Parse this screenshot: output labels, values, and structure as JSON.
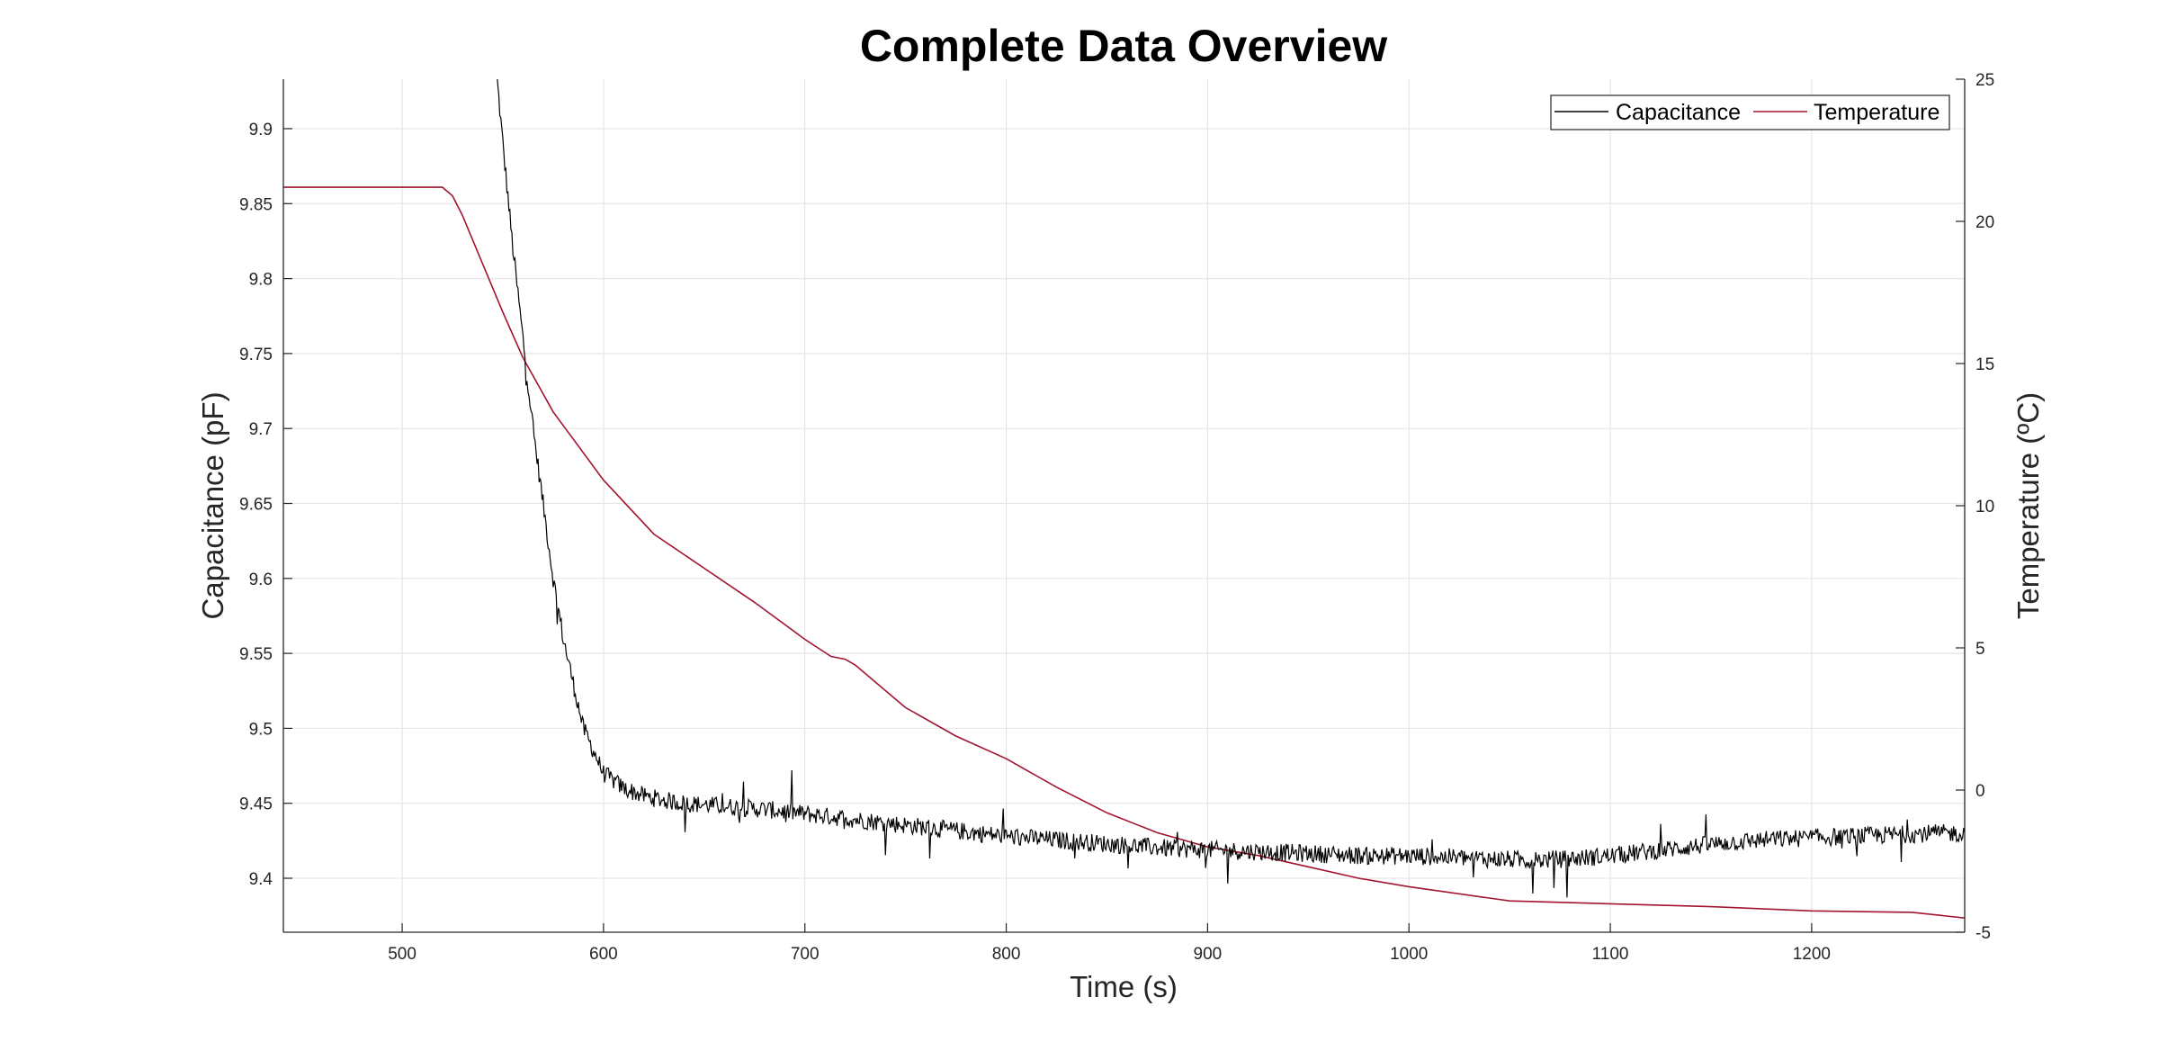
{
  "chart_data": {
    "type": "line",
    "title": "Complete Data Overview",
    "xlabel": "Time (s)",
    "ylabel_left": "Capacitance (pF)",
    "ylabel_right": "Temperature (ºC)",
    "xlim": [
      441,
      1276
    ],
    "ylim_left": [
      9.364,
      9.933
    ],
    "ylim_right": [
      -5,
      25
    ],
    "x_ticks": [
      500,
      600,
      700,
      800,
      900,
      1000,
      1100,
      1200
    ],
    "x_tick_labels": [
      "500",
      "600",
      "700",
      "800",
      "900",
      "1000",
      "1100",
      "1200"
    ],
    "y_left_ticks": [
      9.4,
      9.45,
      9.5,
      9.55,
      9.6,
      9.65,
      9.7,
      9.75,
      9.8,
      9.85,
      9.9
    ],
    "y_left_tick_labels": [
      "9.4",
      "9.45",
      "9.5",
      "9.55",
      "9.6",
      "9.65",
      "9.7",
      "9.75",
      "9.8",
      "9.85",
      "9.9"
    ],
    "y_right_ticks": [
      -5,
      0,
      5,
      10,
      15,
      20,
      25
    ],
    "y_right_tick_labels": [
      "-5",
      "0",
      "5",
      "10",
      "15",
      "20",
      "25"
    ],
    "grid": true,
    "legend_position": "top-right",
    "colors": {
      "capacitance": "#000000",
      "temperature": "#a2142f",
      "grid": "#e6e6e6",
      "axis": "#262626"
    },
    "series": [
      {
        "name": "Capacitance",
        "axis": "left",
        "x": [
          547,
          550,
          555,
          560,
          565,
          570,
          575,
          580,
          585,
          590,
          595,
          600,
          610,
          620,
          630,
          640,
          650,
          660,
          680,
          700,
          720,
          740,
          760,
          780,
          800,
          820,
          840,
          860,
          880,
          900,
          920,
          940,
          960,
          980,
          1000,
          1020,
          1040,
          1060,
          1080,
          1100,
          1120,
          1140,
          1160,
          1180,
          1200,
          1220,
          1240,
          1260,
          1276
        ],
        "y": [
          9.935,
          9.89,
          9.82,
          9.76,
          9.7,
          9.65,
          9.6,
          9.56,
          9.53,
          9.5,
          9.485,
          9.47,
          9.46,
          9.455,
          9.452,
          9.45,
          9.449,
          9.448,
          9.446,
          9.443,
          9.44,
          9.437,
          9.434,
          9.431,
          9.428,
          9.426,
          9.424,
          9.422,
          9.42,
          9.419,
          9.418,
          9.417,
          9.416,
          9.415,
          9.415,
          9.414,
          9.413,
          9.412,
          9.413,
          9.415,
          9.418,
          9.421,
          9.424,
          9.426,
          9.427,
          9.428,
          9.429,
          9.43,
          9.43
        ]
      },
      {
        "name": "Temperature",
        "axis": "right",
        "x": [
          441,
          500,
          520,
          525,
          530,
          540,
          550,
          560,
          575,
          600,
          625,
          650,
          675,
          700,
          713,
          720,
          725,
          750,
          775,
          800,
          825,
          850,
          875,
          900,
          925,
          950,
          975,
          1000,
          1050,
          1100,
          1150,
          1200,
          1250,
          1276
        ],
        "y": [
          21.2,
          21.2,
          21.2,
          20.9,
          20.2,
          18.5,
          16.8,
          15.2,
          13.3,
          10.9,
          9.0,
          7.8,
          6.6,
          5.3,
          4.7,
          4.6,
          4.4,
          2.9,
          1.9,
          1.1,
          0.1,
          -0.8,
          -1.5,
          -2.0,
          -2.3,
          -2.7,
          -3.1,
          -3.4,
          -3.9,
          -4.0,
          -4.1,
          -4.25,
          -4.3,
          -4.5
        ]
      }
    ]
  }
}
